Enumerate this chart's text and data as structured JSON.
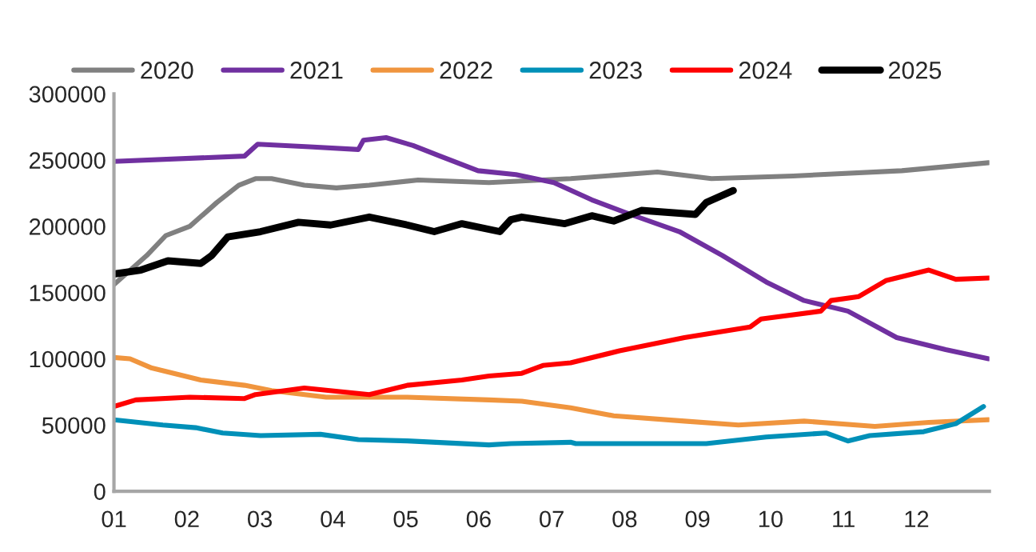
{
  "chart_data": {
    "type": "line",
    "xlim": [
      1,
      13
    ],
    "xticks": [
      {
        "value": 1,
        "label": "01"
      },
      {
        "value": 2,
        "label": "02"
      },
      {
        "value": 3,
        "label": "03"
      },
      {
        "value": 4,
        "label": "04"
      },
      {
        "value": 5,
        "label": "05"
      },
      {
        "value": 6,
        "label": "06"
      },
      {
        "value": 7,
        "label": "07"
      },
      {
        "value": 8,
        "label": "08"
      },
      {
        "value": 9,
        "label": "09"
      },
      {
        "value": 10,
        "label": "10"
      },
      {
        "value": 11,
        "label": "11"
      },
      {
        "value": 12,
        "label": "12"
      }
    ],
    "ylim": [
      0,
      300000
    ],
    "yticks": [
      0,
      50000,
      100000,
      150000,
      200000,
      250000,
      300000
    ],
    "grid": false,
    "legend": "top",
    "marker": "none",
    "line_style": "solid",
    "series": [
      {
        "name": "2020",
        "color": "#808080",
        "x": [
          1.0,
          1.45,
          1.71,
          2.04,
          2.41,
          2.71,
          2.94,
          3.16,
          3.61,
          4.05,
          4.5,
          5.17,
          6.14,
          7.26,
          8.45,
          9.19,
          10.31,
          11.8,
          12.99
        ],
        "values": [
          156000,
          178000,
          193000,
          200000,
          218000,
          231000,
          236000,
          236000,
          231000,
          229000,
          231000,
          235000,
          233000,
          236000,
          241000,
          236000,
          238000,
          242000,
          248000
        ]
      },
      {
        "name": "2021",
        "color": "#7030a0",
        "x": [
          1.0,
          2.79,
          2.97,
          3.68,
          4.35,
          4.42,
          4.73,
          5.1,
          5.47,
          5.99,
          6.51,
          7.03,
          7.55,
          8.08,
          8.75,
          9.34,
          9.94,
          10.46,
          11.06,
          11.73,
          12.4,
          12.99
        ],
        "values": [
          249000,
          253000,
          262000,
          260000,
          258000,
          265000,
          267000,
          261000,
          253000,
          242000,
          239000,
          233000,
          220000,
          209000,
          196000,
          178000,
          158000,
          144000,
          136000,
          116000,
          107000,
          100000
        ]
      },
      {
        "name": "2022",
        "color": "#f0953e",
        "x": [
          1.0,
          1.22,
          1.52,
          2.19,
          2.79,
          3.16,
          3.91,
          5.02,
          6.14,
          6.59,
          7.26,
          7.85,
          8.82,
          9.56,
          10.46,
          11.43,
          12.17,
          12.99
        ],
        "values": [
          101000,
          100000,
          93000,
          84000,
          80000,
          76000,
          71000,
          71000,
          69000,
          68000,
          63000,
          57000,
          53000,
          50000,
          53000,
          49000,
          52000,
          54000
        ]
      },
      {
        "name": "2023",
        "color": "#0090b8",
        "x": [
          1.0,
          1.67,
          2.12,
          2.49,
          3.01,
          3.83,
          4.35,
          5.02,
          6.14,
          6.44,
          7.26,
          7.33,
          9.12,
          9.94,
          10.76,
          11.06,
          11.36,
          12.1,
          12.54,
          12.92
        ],
        "values": [
          54000,
          50000,
          48000,
          44000,
          42000,
          43000,
          39000,
          38000,
          35000,
          36000,
          37000,
          36000,
          36000,
          41000,
          44000,
          38000,
          42000,
          45000,
          51000,
          64000
        ]
      },
      {
        "name": "2024",
        "color": "#ff0000",
        "x": [
          1.0,
          1.3,
          2.04,
          2.79,
          2.94,
          3.61,
          4.5,
          5.02,
          5.77,
          6.14,
          6.59,
          6.88,
          7.26,
          7.93,
          8.82,
          9.72,
          9.87,
          10.69,
          10.83,
          11.21,
          11.58,
          12.17,
          12.54,
          12.99
        ],
        "values": [
          64000,
          69000,
          71000,
          70000,
          73000,
          78000,
          73000,
          80000,
          84000,
          87000,
          89000,
          95000,
          97000,
          106000,
          116000,
          124000,
          130000,
          136000,
          144000,
          147000,
          159000,
          167000,
          160000,
          161000
        ]
      },
      {
        "name": "2025",
        "color": "#000000",
        "x": [
          1.0,
          1.37,
          1.74,
          2.19,
          2.34,
          2.56,
          3.01,
          3.53,
          3.97,
          4.5,
          5.02,
          5.39,
          5.77,
          6.29,
          6.44,
          6.59,
          7.18,
          7.55,
          7.85,
          8.23,
          8.97,
          9.12,
          9.49
        ],
        "values": [
          164000,
          167000,
          174000,
          172000,
          178000,
          192000,
          196000,
          203000,
          201000,
          207000,
          201000,
          196000,
          202000,
          196000,
          205000,
          207000,
          202000,
          208000,
          204000,
          212000,
          209000,
          218000,
          227000
        ]
      }
    ]
  }
}
